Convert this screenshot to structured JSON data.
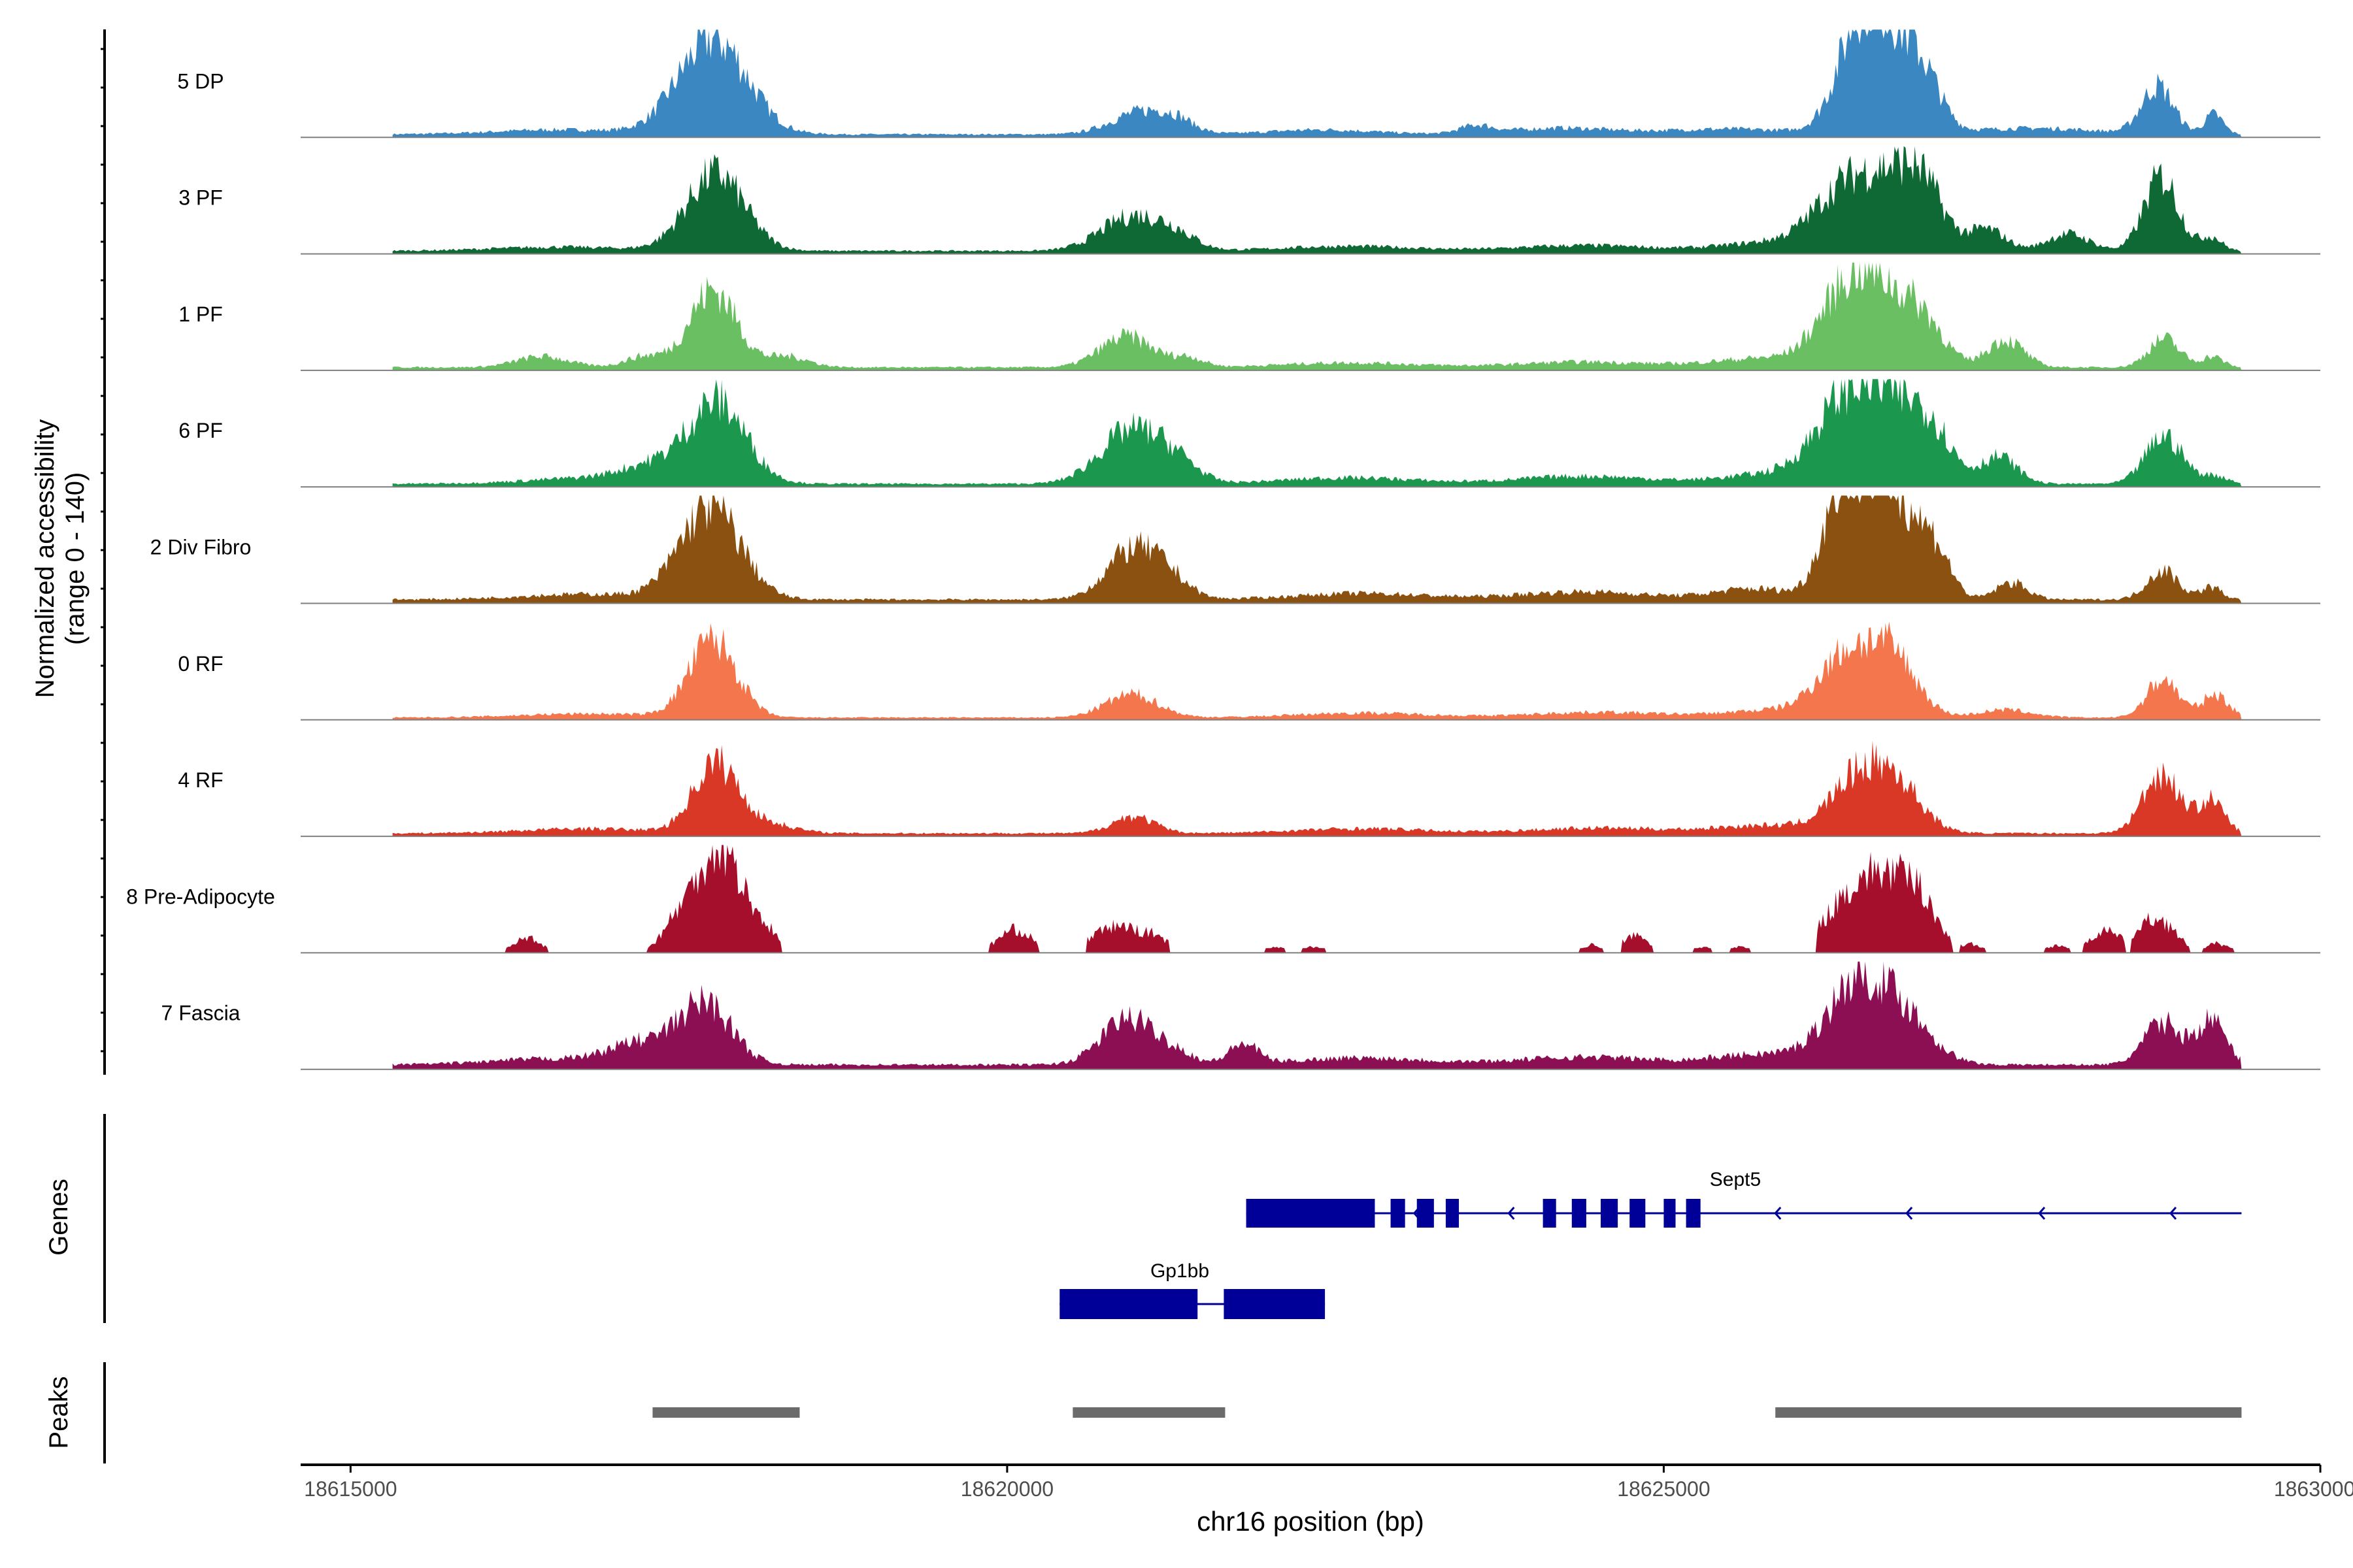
{
  "chart_data": {
    "type": "area",
    "title": "",
    "ylabel_line1": "Normalized accessibility",
    "ylabel_line2": "(range 0 - 140)",
    "xlabel": "chr16 position (bp)",
    "xlim": [
      18614620,
      18630000
    ],
    "data_x_range": [
      18615320,
      18629400
    ],
    "ylim": [
      0,
      140
    ],
    "x_ticks": [
      {
        "value": 18615000,
        "label": "18615000"
      },
      {
        "value": 18620000,
        "label": "18620000"
      },
      {
        "value": 18625000,
        "label": "18625000"
      },
      {
        "value": 18630000,
        "label": "18630000"
      }
    ],
    "tracks": [
      {
        "name": "5 DP",
        "color": "#3a87c1",
        "baseline": 4,
        "coverage": "continuous",
        "peaks": [
          [
            18617760,
            125,
            260
          ],
          [
            18621010,
            28,
            220
          ],
          [
            18621280,
            14,
            140
          ],
          [
            18623570,
            10,
            120
          ],
          [
            18626460,
            90,
            170
          ],
          [
            18626690,
            120,
            200
          ],
          [
            18626980,
            55,
            140
          ],
          [
            18628760,
            62,
            120
          ],
          [
            18629190,
            26,
            70
          ],
          [
            18616600,
            6,
            500
          ],
          [
            18622400,
            6,
            400
          ],
          [
            18624200,
            8,
            400
          ],
          [
            18625500,
            7,
            500
          ],
          [
            18627800,
            8,
            500
          ]
        ]
      },
      {
        "name": "3 PF",
        "color": "#0f6934",
        "baseline": 4,
        "coverage": "continuous",
        "peaks": [
          [
            18617780,
            100,
            220
          ],
          [
            18620960,
            45,
            240
          ],
          [
            18621300,
            14,
            150
          ],
          [
            18626350,
            65,
            220
          ],
          [
            18626750,
            85,
            230
          ],
          [
            18626990,
            50,
            150
          ],
          [
            18627460,
            28,
            140
          ],
          [
            18628080,
            22,
            160
          ],
          [
            18628790,
            96,
            130
          ],
          [
            18616600,
            5,
            500
          ],
          [
            18622600,
            6,
            500
          ],
          [
            18624400,
            7,
            500
          ],
          [
            18625900,
            12,
            400
          ],
          [
            18629170,
            18,
            80
          ]
        ]
      },
      {
        "name": "1 PF",
        "color": "#6abf63",
        "baseline": 4,
        "coverage": "continuous",
        "peaks": [
          [
            18617760,
            100,
            180
          ],
          [
            18616460,
            14,
            200
          ],
          [
            18617240,
            14,
            150
          ],
          [
            18618330,
            14,
            160
          ],
          [
            18620910,
            40,
            200
          ],
          [
            18621380,
            12,
            120
          ],
          [
            18626360,
            78,
            200
          ],
          [
            18626650,
            85,
            200
          ],
          [
            18626980,
            55,
            160
          ],
          [
            18627600,
            36,
            140
          ],
          [
            18628810,
            37,
            120
          ],
          [
            18629180,
            14,
            80
          ],
          [
            18622600,
            6,
            500
          ],
          [
            18624400,
            7,
            500
          ],
          [
            18625800,
            12,
            400
          ]
        ]
      },
      {
        "name": "6 PF",
        "color": "#1b974e",
        "baseline": 4,
        "coverage": "continuous",
        "peaks": [
          [
            18617790,
            105,
            220
          ],
          [
            18617280,
            18,
            220
          ],
          [
            18620950,
            70,
            240
          ],
          [
            18621300,
            20,
            160
          ],
          [
            18626360,
            85,
            220
          ],
          [
            18626740,
            95,
            240
          ],
          [
            18627050,
            48,
            150
          ],
          [
            18627550,
            35,
            140
          ],
          [
            18628810,
            62,
            140
          ],
          [
            18616900,
            8,
            500
          ],
          [
            18622600,
            8,
            500
          ],
          [
            18624400,
            10,
            500
          ],
          [
            18625900,
            14,
            400
          ],
          [
            18629200,
            10,
            100
          ]
        ]
      },
      {
        "name": "2 Div Fibro",
        "color": "#8b5110",
        "baseline": 5,
        "coverage": "continuous",
        "peaks": [
          [
            18617740,
            120,
            230
          ],
          [
            18620960,
            65,
            200
          ],
          [
            18621250,
            20,
            150
          ],
          [
            18626340,
            130,
            140
          ],
          [
            18626580,
            100,
            130
          ],
          [
            18626800,
            110,
            150
          ],
          [
            18627070,
            60,
            120
          ],
          [
            18627650,
            22,
            120
          ],
          [
            18628800,
            38,
            120
          ],
          [
            18629170,
            16,
            80
          ],
          [
            18616800,
            7,
            500
          ],
          [
            18622700,
            8,
            500
          ],
          [
            18624400,
            10,
            500
          ],
          [
            18625700,
            14,
            300
          ]
        ]
      },
      {
        "name": "0 RF",
        "color": "#f3764c",
        "baseline": 3,
        "coverage": "continuous",
        "peaks": [
          [
            18617760,
            100,
            180
          ],
          [
            18620950,
            30,
            200
          ],
          [
            18626370,
            70,
            200
          ],
          [
            18626730,
            80,
            190
          ],
          [
            18628800,
            50,
            120
          ],
          [
            18629200,
            30,
            100
          ],
          [
            18616800,
            5,
            500
          ],
          [
            18622700,
            6,
            500
          ],
          [
            18624500,
            7,
            500
          ],
          [
            18625900,
            10,
            400
          ],
          [
            18627600,
            10,
            200
          ]
        ]
      },
      {
        "name": "4 RF",
        "color": "#d93826",
        "baseline": 4,
        "coverage": "continuous",
        "peaks": [
          [
            18617780,
            90,
            170
          ],
          [
            18618180,
            12,
            200
          ],
          [
            18620960,
            22,
            160
          ],
          [
            18626460,
            60,
            200
          ],
          [
            18626760,
            62,
            200
          ],
          [
            18628790,
            78,
            140
          ],
          [
            18629170,
            42,
            100
          ],
          [
            18616800,
            6,
            500
          ],
          [
            18622700,
            6,
            500
          ],
          [
            18624500,
            7,
            500
          ],
          [
            18625800,
            10,
            400
          ]
        ]
      },
      {
        "name": "8 Pre-Adipocyte",
        "color": "#a50f2c",
        "baseline": 0,
        "coverage": "sparse",
        "peaks": [
          [
            18617800,
            135,
            200
          ],
          [
            18616350,
            20,
            100
          ],
          [
            18617450,
            18,
            100
          ],
          [
            18618180,
            14,
            80
          ],
          [
            18620060,
            30,
            130
          ],
          [
            18620850,
            35,
            200
          ],
          [
            18621150,
            12,
            80
          ],
          [
            18622050,
            8,
            60
          ],
          [
            18622330,
            8,
            60
          ],
          [
            18624450,
            10,
            60
          ],
          [
            18624780,
            22,
            100
          ],
          [
            18625300,
            8,
            50
          ],
          [
            18625580,
            8,
            50
          ],
          [
            18626400,
            60,
            200
          ],
          [
            18626730,
            85,
            200
          ],
          [
            18626980,
            40,
            120
          ],
          [
            18627350,
            10,
            80
          ],
          [
            18628000,
            10,
            80
          ],
          [
            18628350,
            28,
            100
          ],
          [
            18628750,
            45,
            140
          ],
          [
            18629220,
            12,
            80
          ]
        ],
        "coverage_windows": [
          [
            18616180,
            18616500
          ],
          [
            18617260,
            18617560
          ],
          [
            18617560,
            18618090
          ],
          [
            18618090,
            18618280
          ],
          [
            18619860,
            18620240
          ],
          [
            18620600,
            18621240
          ],
          [
            18621960,
            18622120
          ],
          [
            18622240,
            18622420
          ],
          [
            18624360,
            18624540
          ],
          [
            18624680,
            18624920
          ],
          [
            18625230,
            18625370
          ],
          [
            18625500,
            18625660
          ],
          [
            18626160,
            18627200
          ],
          [
            18627250,
            18627450
          ],
          [
            18627900,
            18628100
          ],
          [
            18628200,
            18628520
          ],
          [
            18628560,
            18629000
          ],
          [
            18629100,
            18629340
          ]
        ]
      },
      {
        "name": "7 Fascia",
        "color": "#8c0e53",
        "baseline": 6,
        "coverage": "continuous",
        "peaks": [
          [
            18617700,
            80,
            200
          ],
          [
            18617200,
            25,
            220
          ],
          [
            18620920,
            60,
            200
          ],
          [
            18621280,
            14,
            140
          ],
          [
            18621800,
            26,
            110
          ],
          [
            18626460,
            95,
            220
          ],
          [
            18626820,
            60,
            220
          ],
          [
            18628800,
            55,
            140
          ],
          [
            18629170,
            57,
            110
          ],
          [
            18616600,
            8,
            500
          ],
          [
            18622700,
            9,
            500
          ],
          [
            18624400,
            10,
            500
          ],
          [
            18625800,
            14,
            400
          ]
        ]
      }
    ],
    "genes": [
      {
        "name": "Sept5",
        "strand": "-",
        "start": 18621820,
        "end": 18629400,
        "exons": [
          [
            18621820,
            18622800
          ],
          [
            18622920,
            18623030
          ],
          [
            18623120,
            18623250
          ],
          [
            18623340,
            18623440
          ],
          [
            18624080,
            18624180
          ],
          [
            18624300,
            18624410
          ],
          [
            18624520,
            18624650
          ],
          [
            18624740,
            18624860
          ],
          [
            18625000,
            18625090
          ],
          [
            18625170,
            18625280
          ]
        ],
        "arrows": [
          18623100,
          18623820,
          18625850,
          18626850,
          18627860,
          18628860
        ]
      },
      {
        "name": "Gp1bb",
        "strand": "+",
        "start": 18620400,
        "end": 18622420,
        "exons": [
          [
            18620400,
            18621450
          ],
          [
            18621650,
            18622420
          ]
        ]
      }
    ],
    "peaks_regions": [
      [
        18617300,
        18618420
      ],
      [
        18620500,
        18621660
      ],
      [
        18625850,
        18629400
      ]
    ],
    "genes_panel_label": "Genes",
    "peaks_panel_label": "Peaks"
  }
}
